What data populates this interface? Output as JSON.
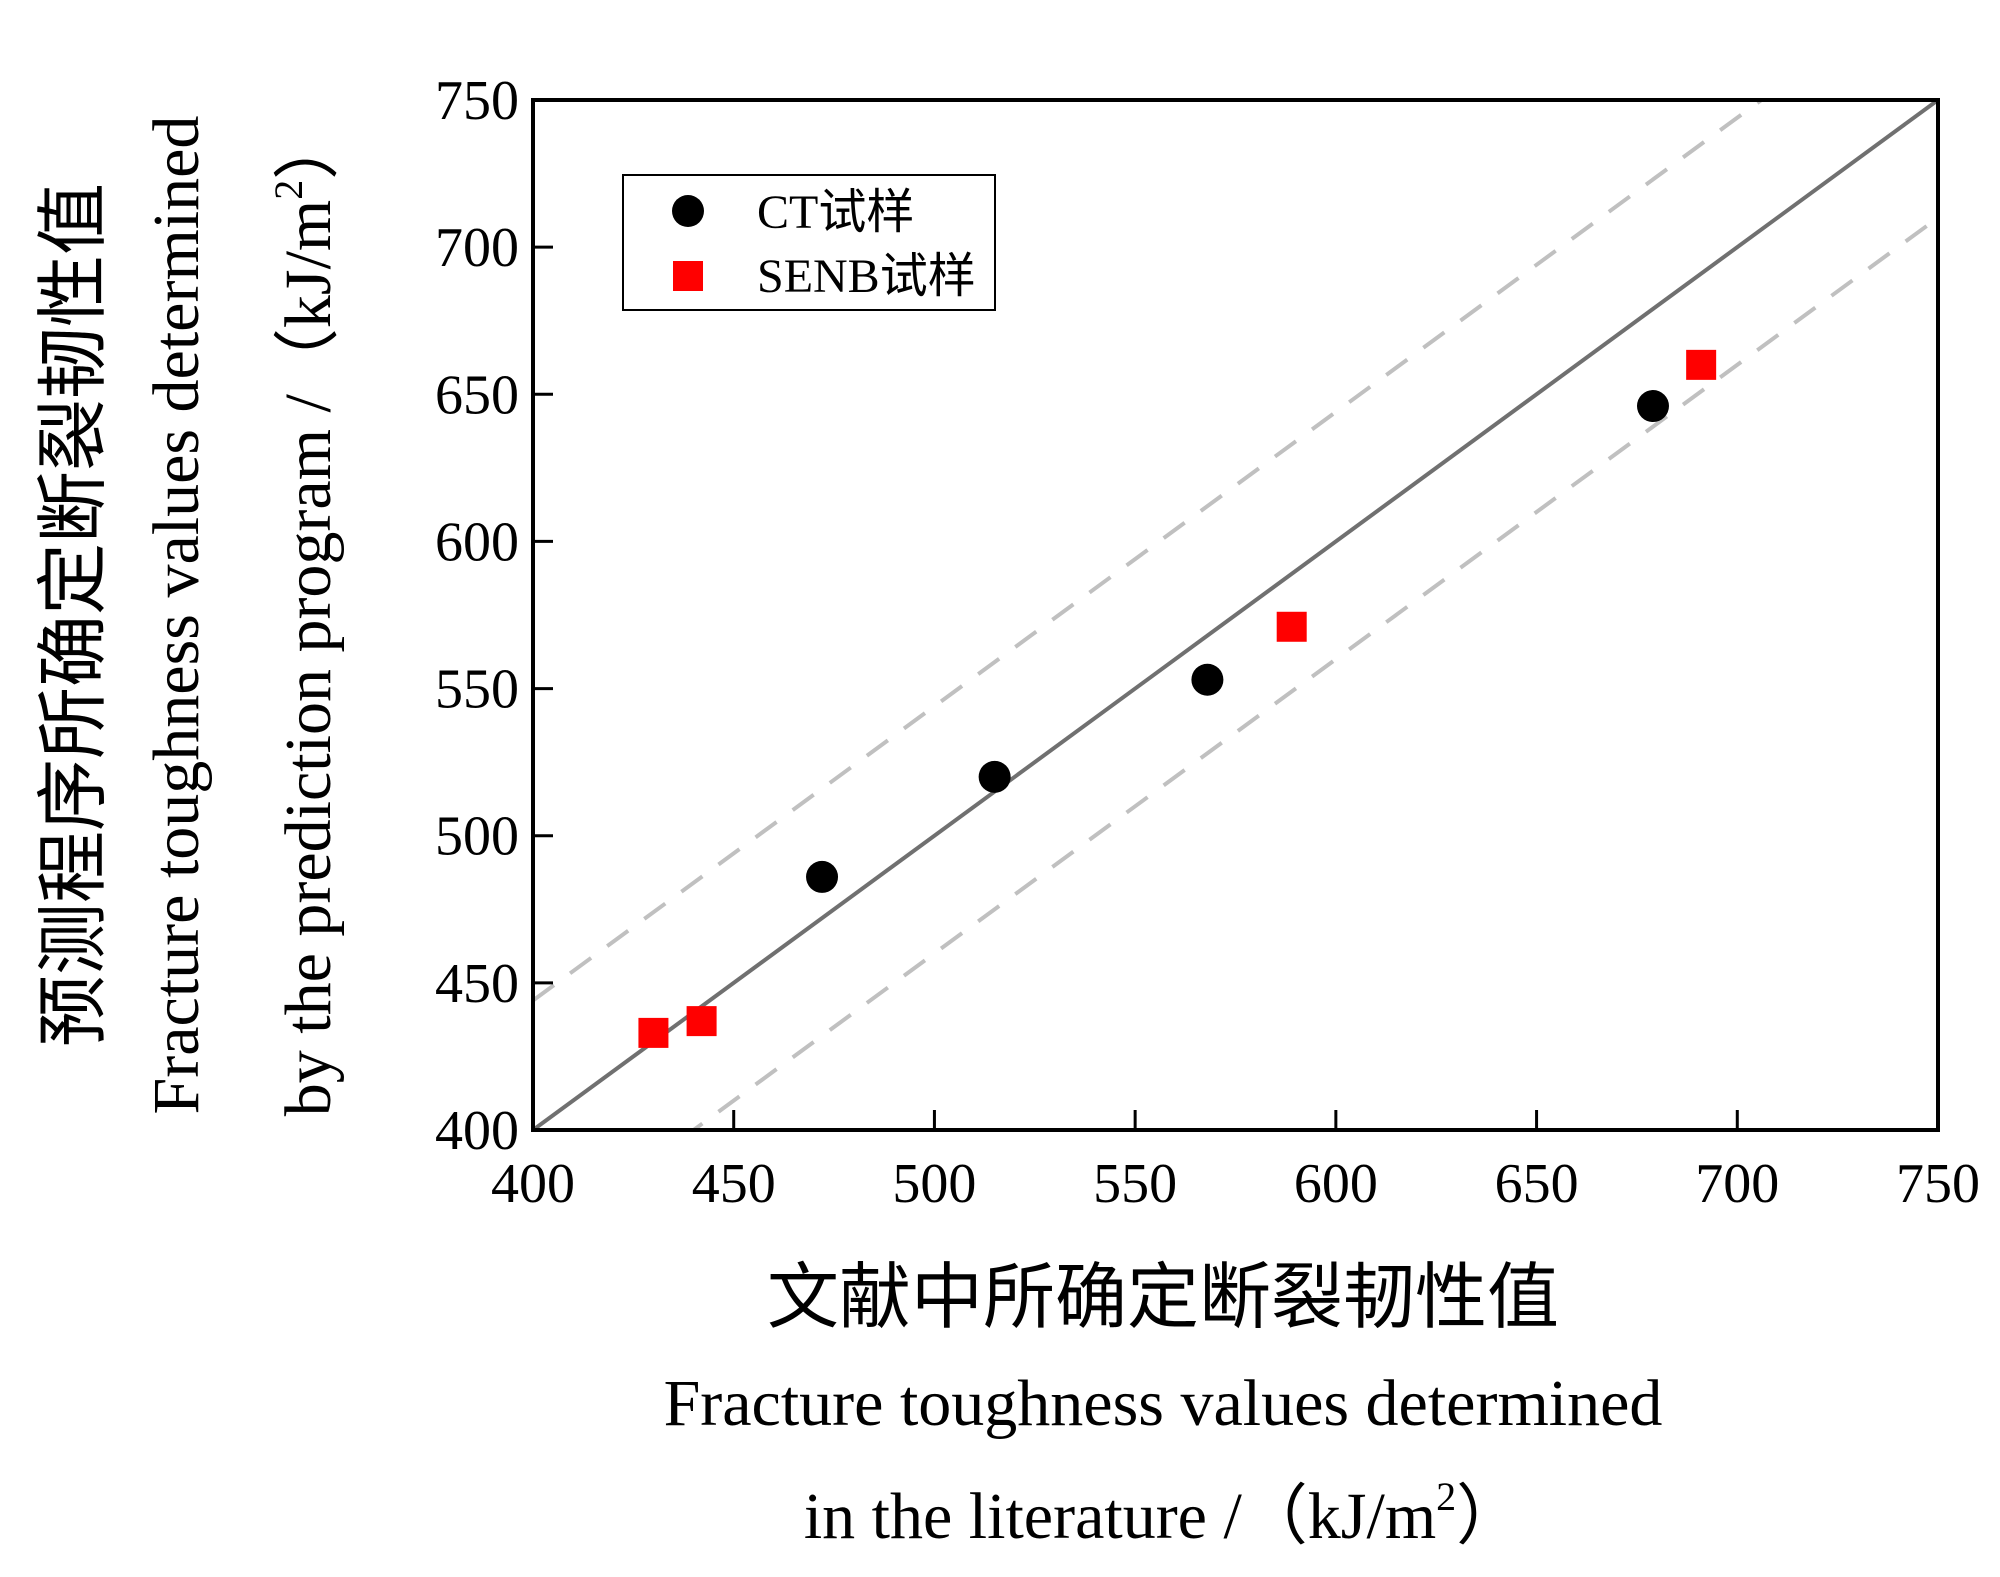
{
  "chart_data": {
    "type": "scatter",
    "xlabel_cn": "文献中所确定断裂韧性值",
    "xlabel_en_line1": "Fracture toughness values determined",
    "xlabel_en_line2": "in the literature /（kJ/m",
    "xlabel_sup": "2",
    "xlabel_close": "）",
    "ylabel_cn": "预测程序所确定断裂韧性值",
    "ylabel_en_line1": "Fracture toughness values determined",
    "ylabel_en_line2": "by the prediction program /（kJ/m",
    "ylabel_sup": "2",
    "ylabel_close": "）",
    "xlim": [
      400,
      750
    ],
    "ylim": [
      400,
      750
    ],
    "xticks": [
      "400",
      "450",
      "500",
      "550",
      "600",
      "650",
      "700",
      "750"
    ],
    "yticks": [
      "400",
      "450",
      "500",
      "550",
      "600",
      "650",
      "700",
      "750"
    ],
    "legend_position": "top-left",
    "series": [
      {
        "name": "CT试样",
        "marker": "circle",
        "color": "#000000",
        "points": [
          [
            472,
            486
          ],
          [
            515,
            520
          ],
          [
            568,
            553
          ],
          [
            679,
            646
          ]
        ]
      },
      {
        "name": "SENB试样",
        "marker": "square",
        "color": "#ff0000",
        "points": [
          [
            430,
            433
          ],
          [
            442,
            437
          ],
          [
            589,
            571
          ],
          [
            691,
            660
          ]
        ]
      }
    ],
    "reference_lines": [
      {
        "style": "solid",
        "color": "#707070",
        "points": [
          [
            400,
            400
          ],
          [
            750,
            750
          ]
        ]
      },
      {
        "style": "dashed",
        "color": "#c0c0c0",
        "points": [
          [
            400,
            444
          ],
          [
            750,
            794
          ]
        ]
      },
      {
        "style": "dashed",
        "color": "#c0c0c0",
        "points": [
          [
            400,
            360
          ],
          [
            750,
            710
          ]
        ]
      }
    ]
  }
}
